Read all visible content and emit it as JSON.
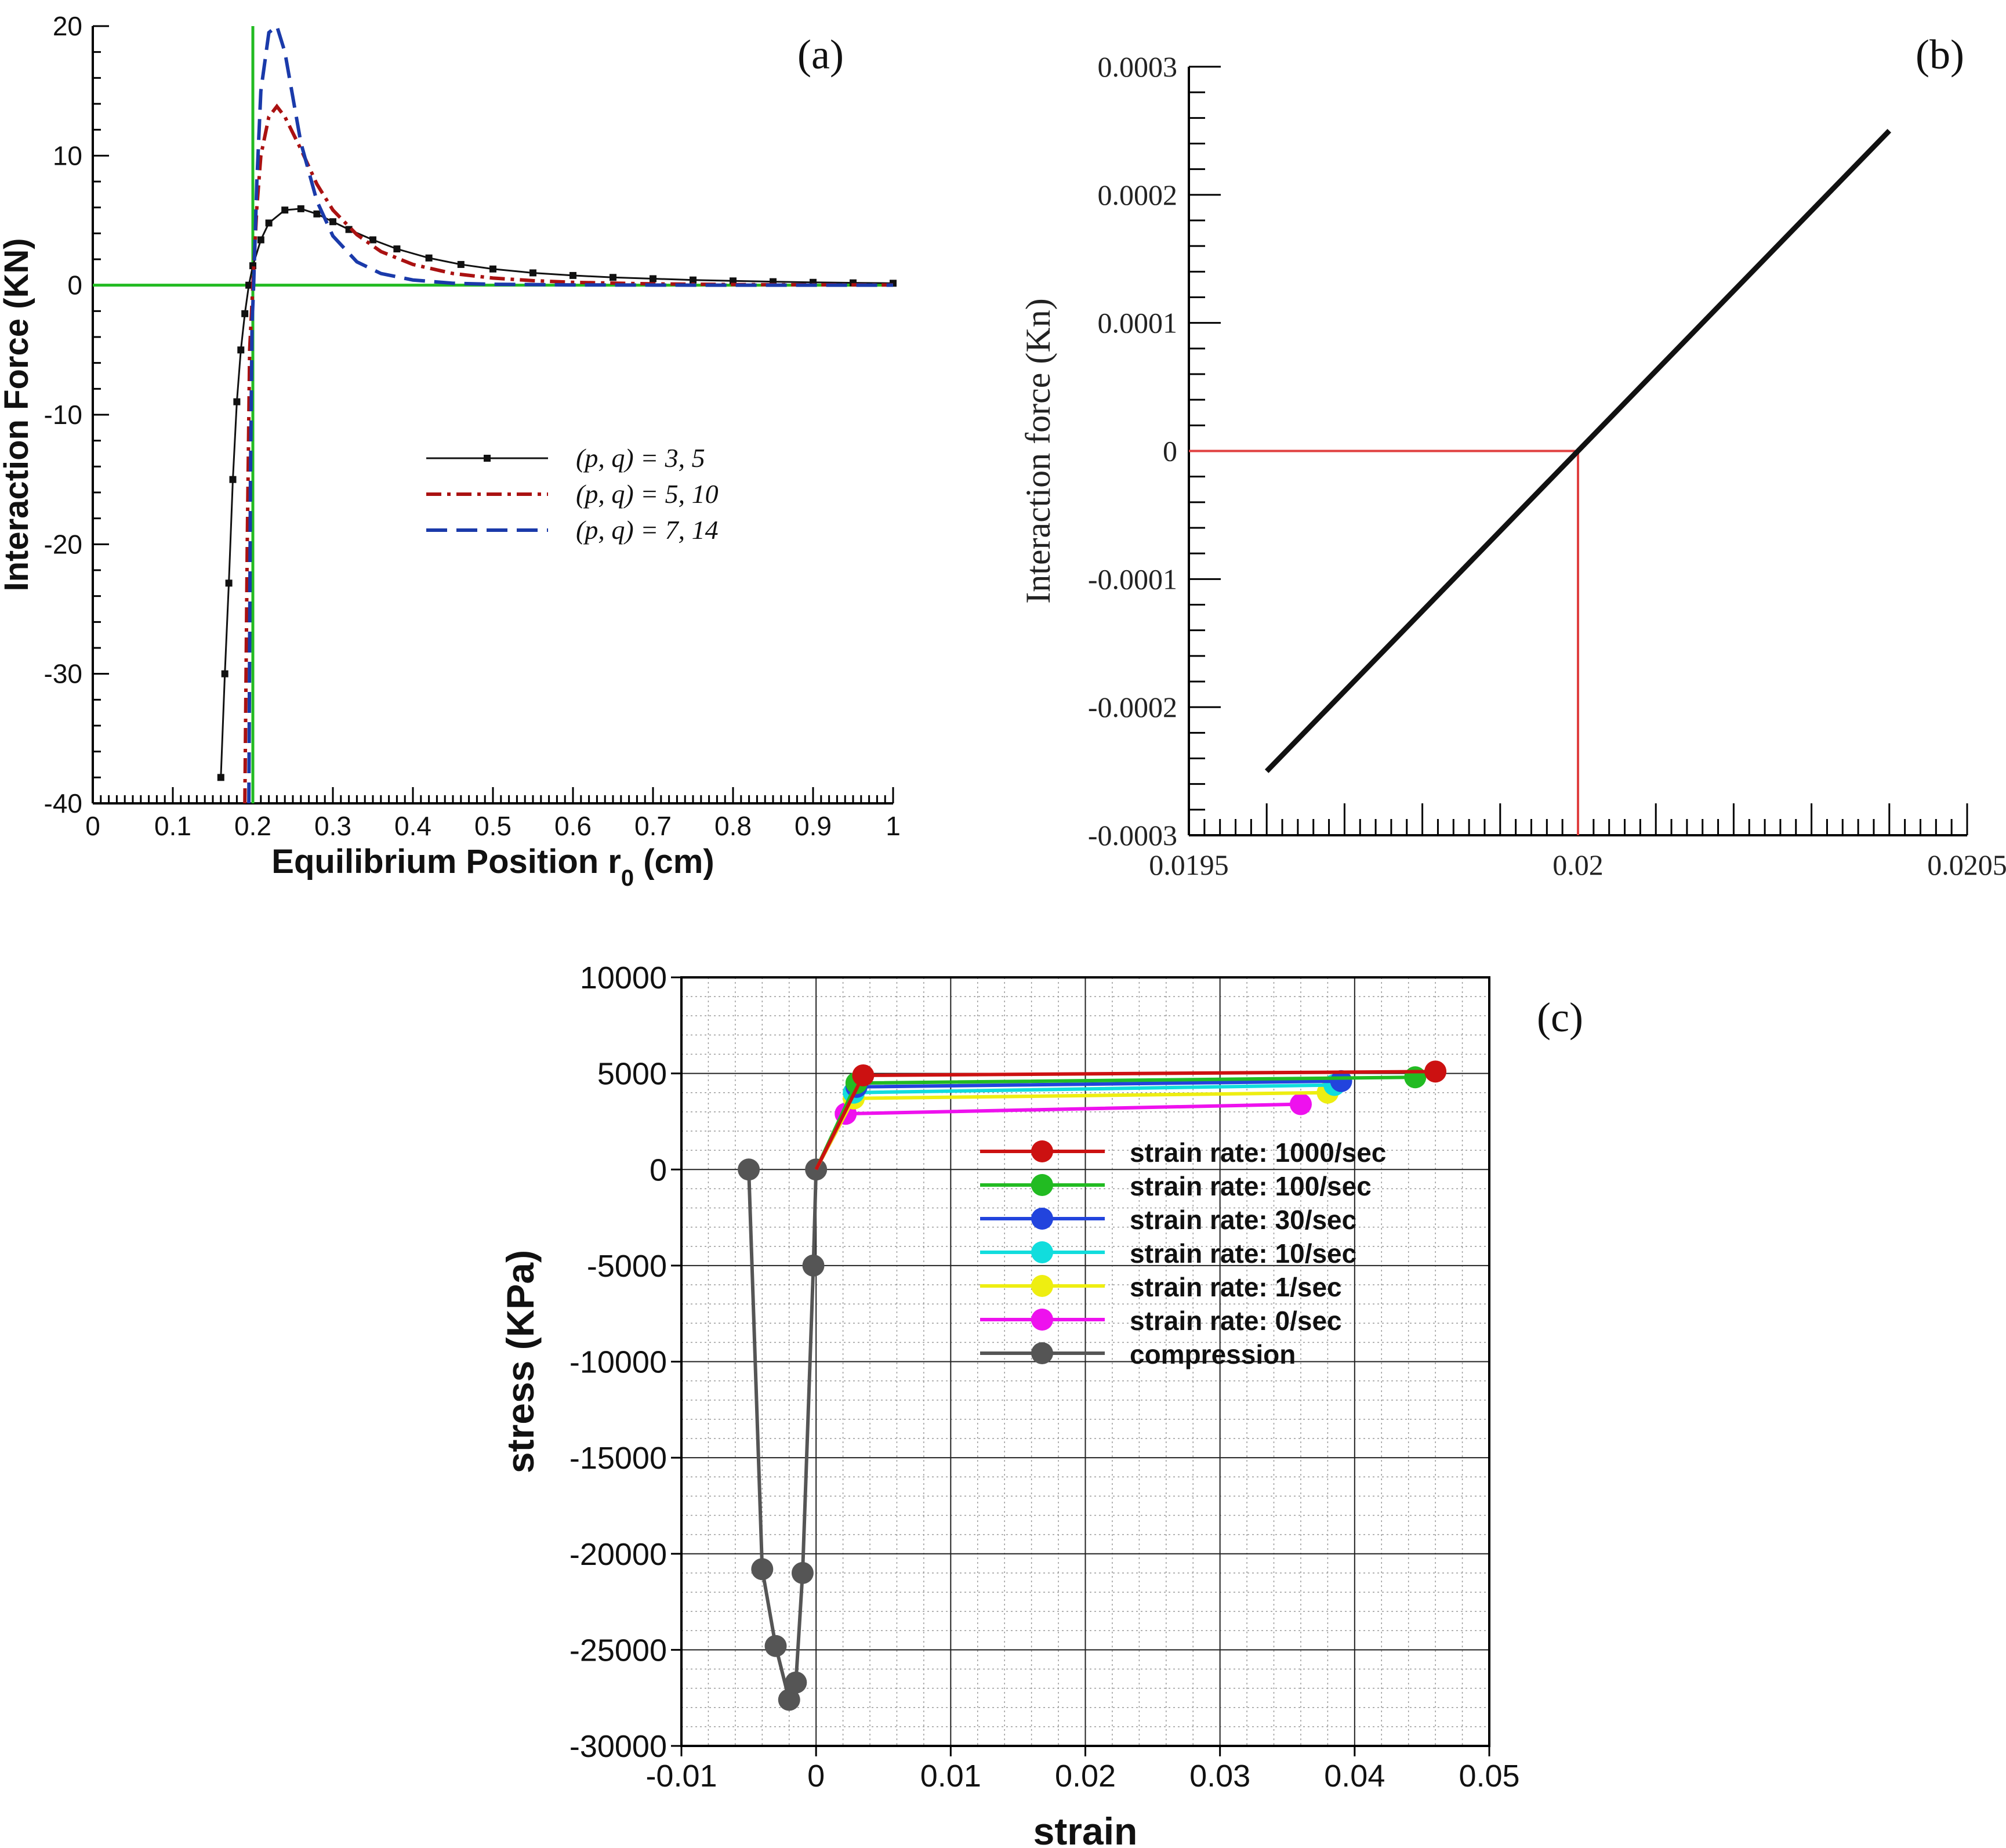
{
  "chart_data": [
    {
      "id": "a",
      "type": "line",
      "panel_label": "(a)",
      "xlabel": "Equilibrium Position r",
      "xlabel_sub": "0",
      "xlabel_suffix": " (cm)",
      "ylabel": "Interaction Force (KN)",
      "xlim": [
        0,
        1
      ],
      "ylim": [
        -40,
        20
      ],
      "x_ticks": [
        0,
        0.1,
        0.2,
        0.3,
        0.4,
        0.5,
        0.6,
        0.7,
        0.8,
        0.9,
        1
      ],
      "x_tick_labels": [
        "0",
        "0.1",
        "0.2",
        "0.3",
        "0.4",
        "0.5",
        "0.6",
        "0.7",
        "0.8",
        "0.9",
        "1"
      ],
      "y_ticks": [
        20,
        10,
        0,
        -10,
        -20,
        -30,
        -40
      ],
      "y_tick_labels": [
        "20",
        "10",
        "0",
        "-10",
        "-20",
        "-30",
        "-40"
      ],
      "reference_lines": [
        {
          "orientation": "horizontal",
          "value": 0,
          "color": "#22bb22"
        },
        {
          "orientation": "vertical",
          "value": 0.2,
          "color": "#22bb22"
        }
      ],
      "series": [
        {
          "name": "(p, q) = 3, 5",
          "color": "#111111",
          "style": "solid-square",
          "x": [
            0.16,
            0.165,
            0.17,
            0.175,
            0.18,
            0.185,
            0.19,
            0.195,
            0.2,
            0.21,
            0.22,
            0.24,
            0.26,
            0.28,
            0.3,
            0.32,
            0.35,
            0.38,
            0.42,
            0.46,
            0.5,
            0.55,
            0.6,
            0.65,
            0.7,
            0.75,
            0.8,
            0.85,
            0.9,
            0.95,
            1.0
          ],
          "values": [
            -38,
            -30,
            -23,
            -15,
            -9,
            -5,
            -2.2,
            0,
            1.5,
            3.5,
            4.8,
            5.8,
            5.9,
            5.5,
            4.9,
            4.3,
            3.5,
            2.8,
            2.1,
            1.6,
            1.25,
            0.95,
            0.75,
            0.6,
            0.5,
            0.4,
            0.33,
            0.27,
            0.22,
            0.18,
            0.15
          ]
        },
        {
          "name": "(p, q) = 5, 10",
          "color": "#aa1111",
          "style": "dashdot",
          "x": [
            0.19,
            0.193,
            0.196,
            0.2,
            0.205,
            0.21,
            0.22,
            0.23,
            0.24,
            0.26,
            0.28,
            0.3,
            0.33,
            0.36,
            0.4,
            0.45,
            0.5,
            0.55,
            0.6,
            0.7,
            0.8,
            0.9,
            1.0
          ],
          "values": [
            -40,
            -20,
            -5,
            0,
            6,
            10,
            13,
            13.8,
            13,
            10.5,
            7.8,
            5.8,
            3.9,
            2.6,
            1.6,
            0.9,
            0.55,
            0.35,
            0.22,
            0.1,
            0.05,
            0.03,
            0.02
          ]
        },
        {
          "name": "(p, q) = 7, 14",
          "color": "#1a3aaa",
          "style": "longdash",
          "x": [
            0.195,
            0.197,
            0.199,
            0.201,
            0.205,
            0.21,
            0.22,
            0.23,
            0.24,
            0.25,
            0.26,
            0.28,
            0.3,
            0.33,
            0.36,
            0.4,
            0.45,
            0.5,
            0.6,
            0.7,
            0.8,
            0.9,
            1.0
          ],
          "values": [
            -40,
            -15,
            -3,
            0,
            8,
            15,
            19.5,
            20,
            18,
            14.5,
            11,
            6.5,
            3.8,
            1.8,
            0.9,
            0.4,
            0.15,
            0.07,
            0.02,
            0.01,
            0,
            0,
            0
          ]
        }
      ]
    },
    {
      "id": "b",
      "type": "line",
      "panel_label": "(b)",
      "xlabel": "",
      "ylabel": "Interaction force (Kn)",
      "xlim": [
        0.0195,
        0.0205
      ],
      "ylim": [
        -0.0003,
        0.0003
      ],
      "x_ticks": [
        0.0195,
        0.02,
        0.0205
      ],
      "x_tick_labels": [
        "0.0195",
        "0.02",
        "0.0205"
      ],
      "y_ticks": [
        0.0003,
        0.0002,
        0.0001,
        0,
        -0.0001,
        -0.0002,
        -0.0003
      ],
      "y_tick_labels": [
        "0.0003",
        "0.0002",
        "0.0001",
        "0",
        "-0.0001",
        "-0.0002",
        "-0.0003"
      ],
      "series": [
        {
          "name": "interaction force",
          "color": "#111111",
          "x": [
            0.0196,
            0.0204
          ],
          "values": [
            -0.00025,
            0.00025
          ]
        }
      ],
      "annotations": [
        {
          "type": "guide",
          "color": "#e04040",
          "x": 0.02,
          "y": 0
        }
      ]
    },
    {
      "id": "c",
      "type": "line",
      "panel_label": "(c)",
      "xlabel": "strain",
      "ylabel": "stress (KPa)",
      "xlim": [
        -0.01,
        0.05
      ],
      "ylim": [
        -30000,
        10000
      ],
      "x_ticks": [
        -0.01,
        0,
        0.01,
        0.02,
        0.03,
        0.04,
        0.05
      ],
      "x_tick_labels": [
        "-0.01",
        "0",
        "0.01",
        "0.02",
        "0.03",
        "0.04",
        "0.05"
      ],
      "y_ticks": [
        10000,
        5000,
        0,
        -5000,
        -10000,
        -15000,
        -20000,
        -25000,
        -30000
      ],
      "y_tick_labels": [
        "10000",
        "5000",
        "0",
        "-5000",
        "-10000",
        "-15000",
        "-20000",
        "-25000",
        "-30000"
      ],
      "grid": true,
      "series": [
        {
          "name": "strain rate: 1000/sec",
          "color": "#cc1111",
          "x": [
            0,
            0.0035,
            0.046
          ],
          "values": [
            0,
            4900,
            5100
          ]
        },
        {
          "name": "strain rate: 100/sec",
          "color": "#22bb22",
          "x": [
            0,
            0.003,
            0.0445
          ],
          "values": [
            0,
            4500,
            4800
          ]
        },
        {
          "name": "strain rate: 30/sec",
          "color": "#2244dd",
          "x": [
            0,
            0.003,
            0.039
          ],
          "values": [
            0,
            4300,
            4600
          ]
        },
        {
          "name": "strain rate: 10/sec",
          "color": "#11dddd",
          "x": [
            0,
            0.0028,
            0.0385
          ],
          "values": [
            0,
            4000,
            4400
          ]
        },
        {
          "name": "strain rate: 1/sec",
          "color": "#eeee11",
          "x": [
            0,
            0.0028,
            0.038
          ],
          "values": [
            0,
            3700,
            4000
          ]
        },
        {
          "name": "strain rate: 0/sec",
          "color": "#ee11ee",
          "x": [
            0,
            0.0022,
            0.036
          ],
          "values": [
            0,
            2900,
            3400
          ]
        },
        {
          "name": "compression",
          "color": "#555555",
          "x": [
            -0.005,
            -0.004,
            -0.003,
            -0.002,
            -0.0015,
            -0.001,
            -0.0002,
            0
          ],
          "values": [
            0,
            -20800,
            -24800,
            -27600,
            -26700,
            -21000,
            -5000,
            0
          ]
        }
      ]
    }
  ]
}
